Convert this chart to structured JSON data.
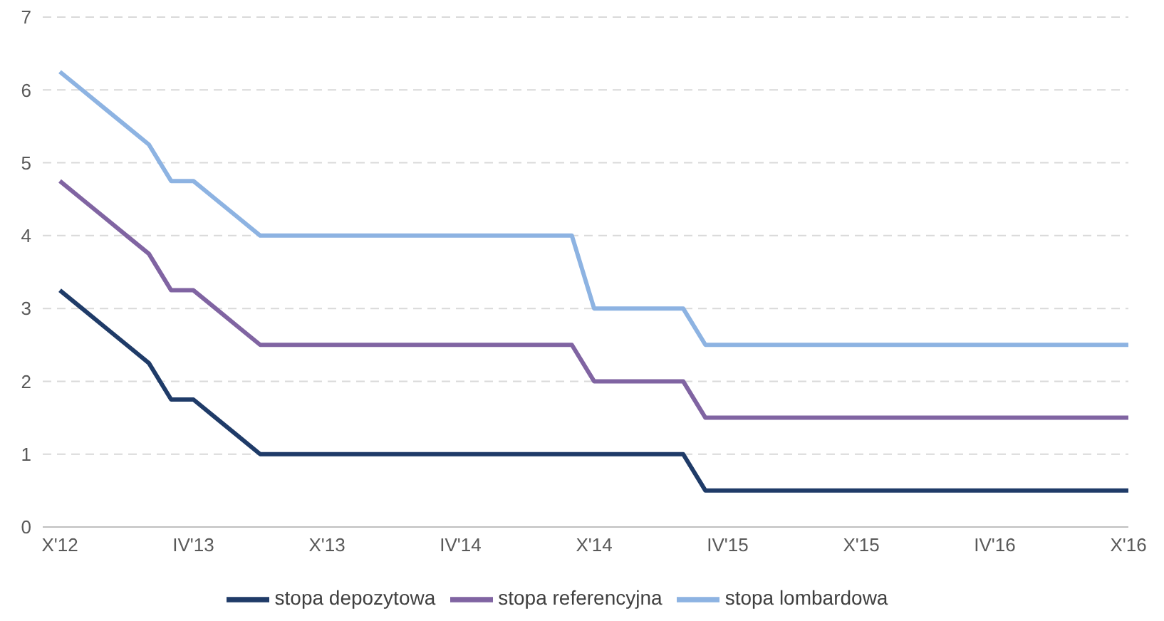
{
  "chart_data": {
    "type": "line",
    "categories": [
      "X'12",
      null,
      null,
      null,
      null,
      null,
      "IV'13",
      null,
      null,
      null,
      null,
      null,
      "X'13",
      null,
      null,
      null,
      null,
      null,
      "IV'14",
      null,
      null,
      null,
      null,
      null,
      "X'14",
      null,
      null,
      null,
      null,
      null,
      "IV'15",
      null,
      null,
      null,
      null,
      null,
      "X'15",
      null,
      null,
      null,
      null,
      null,
      "IV'16",
      null,
      null,
      null,
      null,
      null,
      "X'16"
    ],
    "series": [
      {
        "name": "stopa depozytowa",
        "color": "#1f3b68",
        "values": [
          3.25,
          3,
          2.75,
          2.5,
          2.25,
          1.75,
          1.75,
          1.5,
          1.25,
          1,
          1,
          1,
          1,
          1,
          1,
          1,
          1,
          1,
          1,
          1,
          1,
          1,
          1,
          1,
          1,
          1,
          1,
          1,
          1,
          0.5,
          0.5,
          0.5,
          0.5,
          0.5,
          0.5,
          0.5,
          0.5,
          0.5,
          0.5,
          0.5,
          0.5,
          0.5,
          0.5,
          0.5,
          0.5,
          0.5,
          0.5,
          0.5,
          0.5
        ]
      },
      {
        "name": "stopa referencyjna",
        "color": "#8064a2",
        "values": [
          4.75,
          4.5,
          4.25,
          4,
          3.75,
          3.25,
          3.25,
          3,
          2.75,
          2.5,
          2.5,
          2.5,
          2.5,
          2.5,
          2.5,
          2.5,
          2.5,
          2.5,
          2.5,
          2.5,
          2.5,
          2.5,
          2.5,
          2.5,
          2,
          2,
          2,
          2,
          2,
          1.5,
          1.5,
          1.5,
          1.5,
          1.5,
          1.5,
          1.5,
          1.5,
          1.5,
          1.5,
          1.5,
          1.5,
          1.5,
          1.5,
          1.5,
          1.5,
          1.5,
          1.5,
          1.5,
          1.5
        ]
      },
      {
        "name": "stopa lombardowa",
        "color": "#8db3e2",
        "values": [
          6.25,
          6,
          5.75,
          5.5,
          5.25,
          4.75,
          4.75,
          4.5,
          4.25,
          4,
          4,
          4,
          4,
          4,
          4,
          4,
          4,
          4,
          4,
          4,
          4,
          4,
          4,
          4,
          3,
          3,
          3,
          3,
          3,
          2.5,
          2.5,
          2.5,
          2.5,
          2.5,
          2.5,
          2.5,
          2.5,
          2.5,
          2.5,
          2.5,
          2.5,
          2.5,
          2.5,
          2.5,
          2.5,
          2.5,
          2.5,
          2.5,
          2.5
        ]
      }
    ],
    "ylim": [
      0,
      7
    ],
    "yticks": [
      0,
      1,
      2,
      3,
      4,
      5,
      6,
      7
    ],
    "grid": "y",
    "legend": "bottom",
    "marker": "none",
    "line_style": "solid"
  }
}
